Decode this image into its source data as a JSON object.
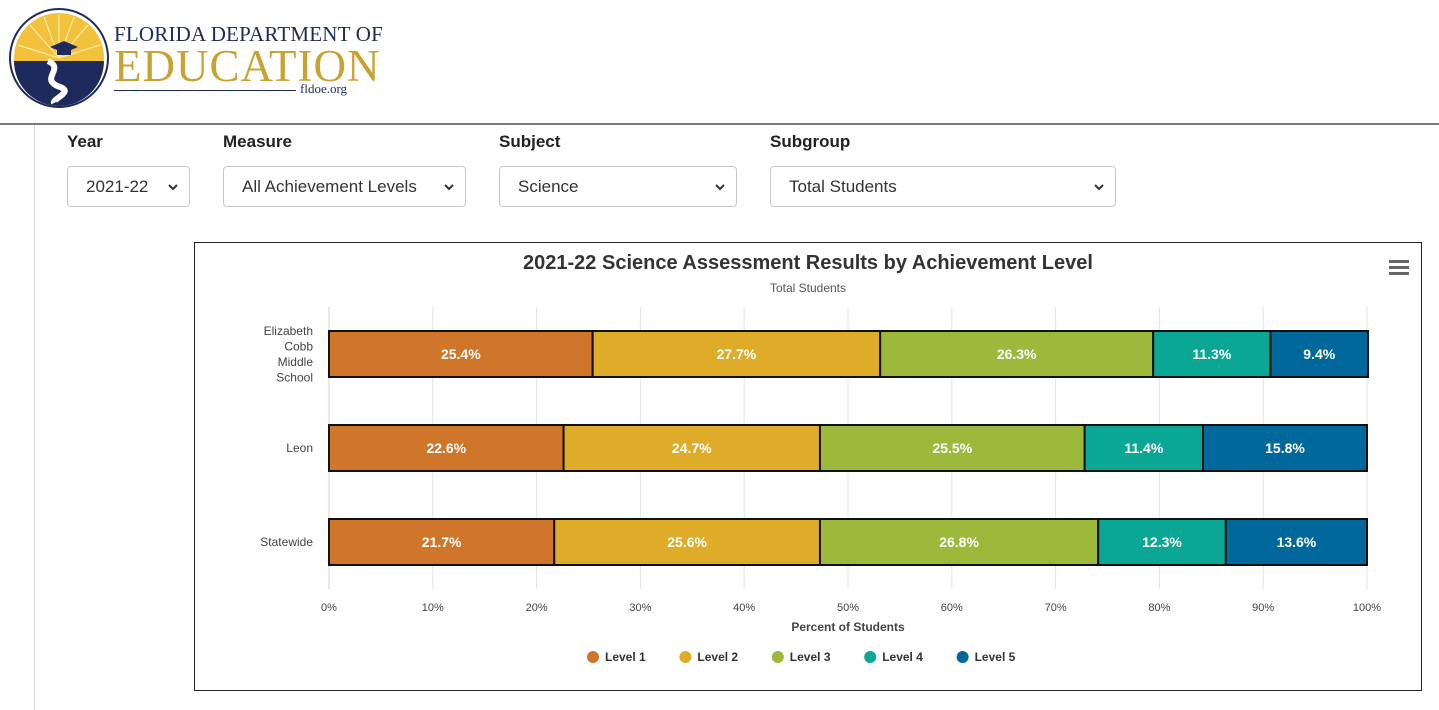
{
  "header": {
    "logo_line1": "FLORIDA DEPARTMENT OF",
    "logo_line2": "EDUCATION",
    "logo_url": "fldoe.org"
  },
  "filters": {
    "year": {
      "label": "Year",
      "value": "2021-22"
    },
    "measure": {
      "label": "Measure",
      "value": "All Achievement Levels"
    },
    "subject": {
      "label": "Subject",
      "value": "Science"
    },
    "subgroup": {
      "label": "Subgroup",
      "value": "Total Students"
    }
  },
  "chart_data": {
    "type": "bar",
    "orientation": "horizontal",
    "stacked": true,
    "title": "2021-22 Science Assessment Results by Achievement Level",
    "subtitle": "Total Students",
    "xlabel": "Percent of Students",
    "ylabel": "",
    "xlim": [
      0,
      100
    ],
    "xticks": [
      "0%",
      "10%",
      "20%",
      "30%",
      "40%",
      "50%",
      "60%",
      "70%",
      "80%",
      "90%",
      "100%"
    ],
    "categories": [
      [
        "Elizabeth",
        "Cobb",
        "Middle",
        "School"
      ],
      [
        "Leon"
      ],
      [
        "Statewide"
      ]
    ],
    "series": [
      {
        "name": "Level 1",
        "color": "#cf762b",
        "values": [
          25.4,
          22.6,
          21.7
        ]
      },
      {
        "name": "Level 2",
        "color": "#dfac2a",
        "values": [
          27.7,
          24.7,
          25.6
        ]
      },
      {
        "name": "Level 3",
        "color": "#9cb93c",
        "values": [
          26.3,
          25.5,
          26.8
        ]
      },
      {
        "name": "Level 4",
        "color": "#0aa794",
        "values": [
          11.3,
          11.4,
          12.3
        ]
      },
      {
        "name": "Level 5",
        "color": "#01689b",
        "values": [
          9.4,
          15.8,
          13.6
        ]
      }
    ],
    "data_labels": true,
    "grid": true,
    "legend_position": "bottom"
  }
}
